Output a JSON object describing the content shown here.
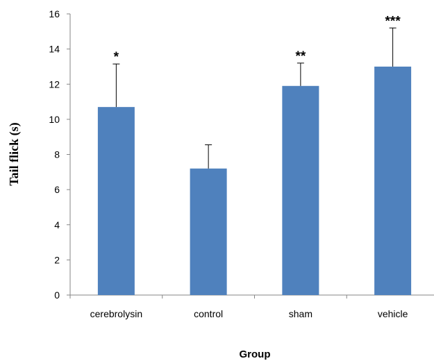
{
  "chart_data": {
    "type": "bar",
    "title": "",
    "xlabel": "Group",
    "ylabel": "Tail flick (s)",
    "categories": [
      "cerebrolysin",
      "control",
      "sham",
      "vehicle"
    ],
    "values": [
      10.7,
      7.2,
      11.9,
      13.0
    ],
    "error_bars": [
      2.45,
      1.35,
      1.3,
      2.2
    ],
    "significance": [
      "*",
      "",
      "**",
      "***"
    ],
    "ylim": [
      0,
      16
    ],
    "yticks": [
      0,
      2,
      4,
      6,
      8,
      10,
      12,
      14,
      16
    ],
    "ytick_labels": [
      "0",
      "2",
      "4",
      "6",
      "8",
      "10",
      "12",
      "14",
      "16"
    ],
    "grid": false,
    "bar_color": "#4f81bd",
    "legend": "none"
  }
}
